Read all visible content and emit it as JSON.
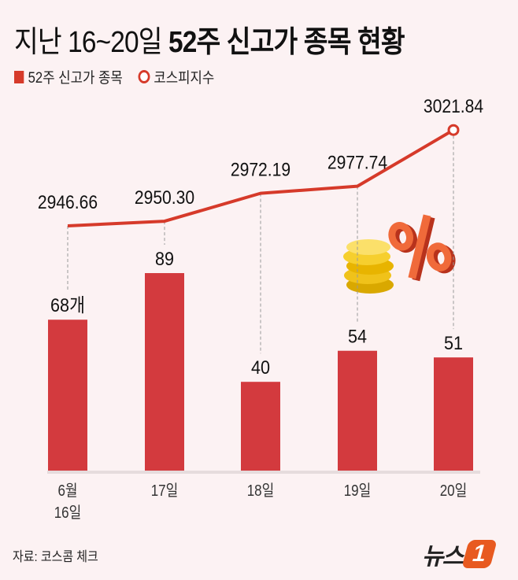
{
  "title_light": "지난 16~20일",
  "title_bold": "52주 신고가 종목 현황",
  "legend": {
    "bars": "52주 신고가 종목",
    "line": "코스피지수"
  },
  "source": "자료: 코스콤 체크",
  "logo": {
    "text": "뉴스",
    "mark": "1"
  },
  "colors": {
    "bar": "#d33a3e",
    "line": "#d63a2a",
    "background": "#fcf2f3"
  },
  "chart_data": {
    "type": "bar+line",
    "categories": [
      "6월 16일",
      "17일",
      "18일",
      "19일",
      "20일"
    ],
    "series": [
      {
        "name": "52주 신고가 종목",
        "type": "bar",
        "values": [
          68,
          89,
          40,
          54,
          51
        ],
        "labels": [
          "68개",
          "89",
          "40",
          "54",
          "51"
        ]
      },
      {
        "name": "코스피지수",
        "type": "line",
        "values": [
          2946.66,
          2950.3,
          2972.19,
          2977.74,
          3021.84
        ],
        "labels": [
          "2946.66",
          "2950.30",
          "2972.19",
          "2977.74",
          "3021.84"
        ]
      }
    ],
    "grid": false,
    "legend_position": "top-left"
  }
}
